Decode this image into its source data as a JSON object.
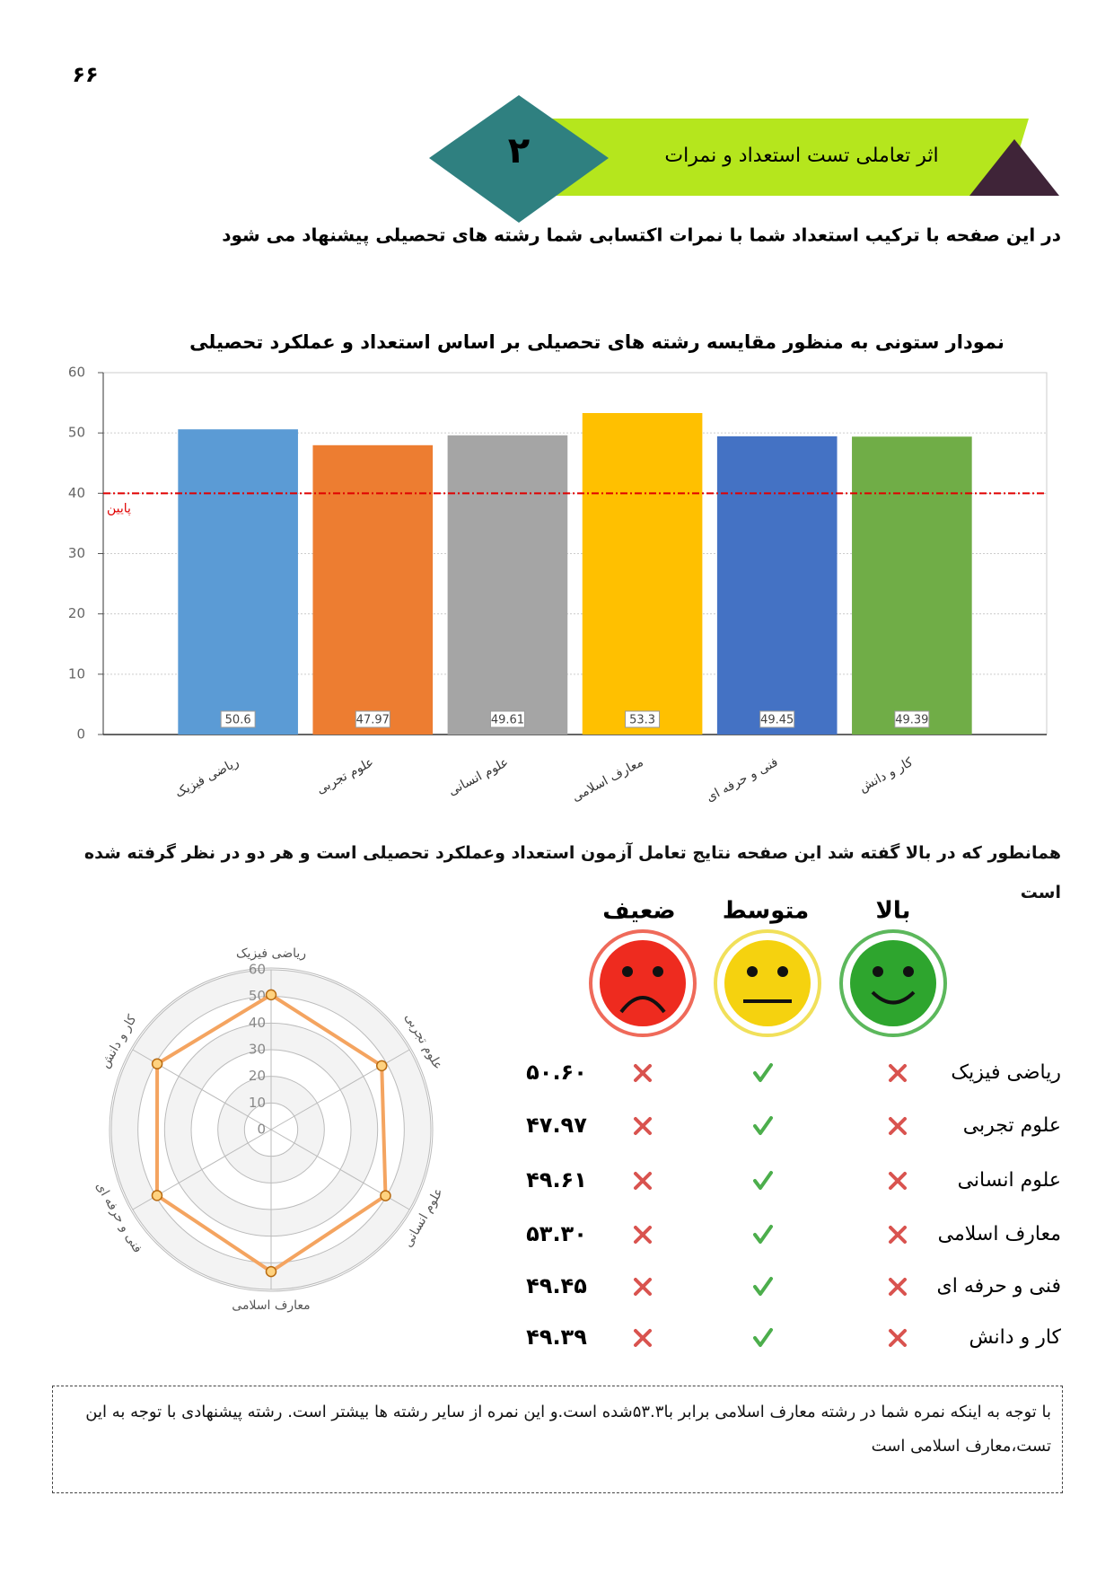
{
  "page_number": "۶۶",
  "header": {
    "number": "۲",
    "title": "اثر تعاملی تست استعداد و نمرات"
  },
  "intro": "در این صفحه با ترکیب استعداد شما با نمرات اکتسابی شما رشته های تحصیلی پیشنهاد می شود",
  "chart_data": [
    {
      "type": "bar",
      "title": "نمودار ستونی به منظور مقایسه رشته های تحصیلی بر اساس استعداد و عملکرد تحصیلی",
      "categories": [
        "ریاضی فیزیک",
        "علوم تجربی",
        "علوم انسانی",
        "معارف اسلامی",
        "فنی و حرفه ای",
        "کار و دانش"
      ],
      "values": [
        50.6,
        47.97,
        49.61,
        53.3,
        49.45,
        49.39
      ],
      "colors": [
        "#5b9bd5",
        "#ed7d31",
        "#a5a5a5",
        "#ffc000",
        "#4472c4",
        "#70ad47"
      ],
      "ylim": [
        0,
        60
      ],
      "yticks": [
        0,
        10,
        20,
        30,
        40,
        50,
        60
      ],
      "grid": true,
      "reference_line": {
        "value": 40,
        "label": "پایین",
        "color": "#e00000"
      }
    },
    {
      "type": "radar",
      "categories": [
        "ریاضی فیزیک",
        "علوم تجربی",
        "علوم انسانی",
        "معارف اسلامی",
        "فنی و حرفه ای",
        "کار و دانش"
      ],
      "values": [
        50.6,
        47.97,
        49.61,
        53.3,
        49.45,
        49.39
      ],
      "color": "#f4a460",
      "rlim": [
        0,
        60
      ],
      "rticks": [
        0,
        10,
        20,
        30,
        40,
        50,
        60
      ]
    }
  ],
  "description": "همانطور که در بالا گفته شد این صفحه نتایج تعامل آزمون استعداد وعملکرد تحصیلی است و هر دو در نظر گرفته شده است",
  "table": {
    "headers": [
      "بالا",
      "متوسط",
      "ضعیف"
    ],
    "rows": [
      [
        "ریاضی فیزیک",
        "۵۰.۶۰"
      ],
      [
        "علوم تجربی",
        "۴۷.۹۷"
      ],
      [
        "علوم انسانی",
        "۴۹.۶۱"
      ],
      [
        "معارف اسلامی",
        "۵۳.۳۰"
      ],
      [
        "فنی و حرفه ای",
        "۴۹.۴۵"
      ],
      [
        "کار و دانش",
        "۴۹.۳۹"
      ]
    ]
  },
  "conclusion": "با توجه به اینکه نمره شما در رشته معارف اسلامی برابر با۵۳.۳شده است.و این نمره از سایر رشته ها بیشتر است. رشته پیشنهادی با توجه به این تست،معارف اسلامی است"
}
